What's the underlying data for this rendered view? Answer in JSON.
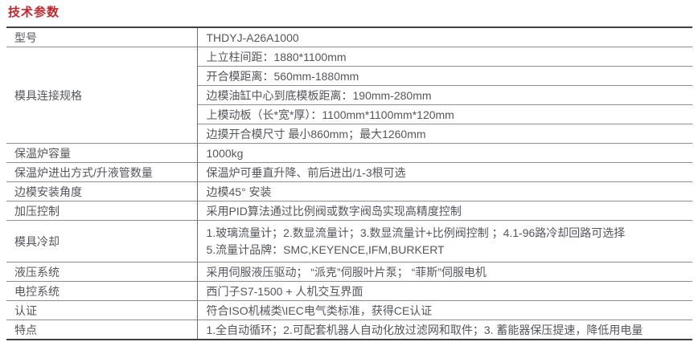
{
  "title": "技术参数",
  "colors": {
    "accent_red": "#c1272c",
    "text_gray": "#55565a",
    "border_dark": "#404042",
    "border_light": "#8d8d8f"
  },
  "table": {
    "rows": [
      {
        "label": "型号",
        "value": "THDYJ-A26A1000"
      },
      {
        "label": "模具连接规格",
        "values": [
          "上立柱间距：1880*1100mm",
          "开合模距离：560mm-1880mm",
          "边模油缸中心到底模板距离：190mm-280mm",
          "上模动板（长*宽*厚）：1100mm*1100mm*120mm",
          "边摸开合模尺寸 最小860mm；最大1260mm"
        ]
      },
      {
        "label": "保温炉容量",
        "value": "1000kg"
      },
      {
        "label": "保温炉进出方式/升液管数量",
        "value": "保温炉可垂直升降、前后进出/1-3根可选"
      },
      {
        "label": "边模安装角度",
        "value": "边模45°  安装"
      },
      {
        "label": "加压控制",
        "value": "采用PID算法通过比例阀或数字阀岛实现高精度控制"
      },
      {
        "label": "模具冷却",
        "lines": [
          "1.玻璃流量计；2.数显流量计；3.数显流量计+比例阀控制 ；4.1-96路冷却回路可选择",
          "5.流量计品牌：SMC,KEYENCE,IFM,BURKERT"
        ]
      },
      {
        "label": "液压系统",
        "value": "采用伺服液压驱动； “派克”伺服叶片泵； “菲斯”伺服电机"
      },
      {
        "label": "电控系统",
        "value": "西门子S7-1500 + 人机交互界面"
      },
      {
        "label": "认证",
        "value": "符合ISO机械类\\IEC电气类标准，获得CE认证"
      },
      {
        "label": "特点",
        "value": "1.全自动循环；2.可配套机器人自动化放过滤网和取件；3. 蓄能器保压提速，降低用电量"
      }
    ]
  }
}
